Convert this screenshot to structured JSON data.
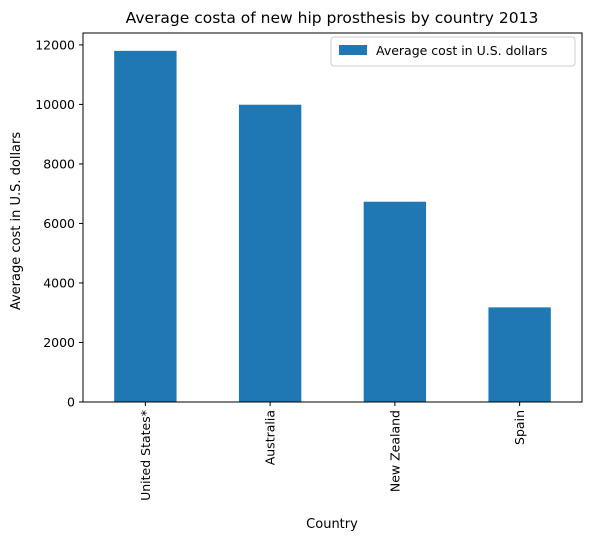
{
  "chart_data": {
    "type": "bar",
    "title": "Average costa of new hip prosthesis by country 2013",
    "xlabel": "Country",
    "ylabel": "Average cost in U.S. dollars",
    "categories": [
      "United States*",
      "Australia",
      "New Zealand",
      "Spain"
    ],
    "series": [
      {
        "name": "Average cost in U.S. dollars",
        "values": [
          11800,
          9990,
          6730,
          3180
        ],
        "color": "#1f77b4"
      }
    ],
    "ylim": [
      0,
      12400
    ],
    "yticks": [
      0,
      2000,
      4000,
      6000,
      8000,
      10000,
      12000
    ],
    "grid": false,
    "legend_position": "top-right"
  }
}
